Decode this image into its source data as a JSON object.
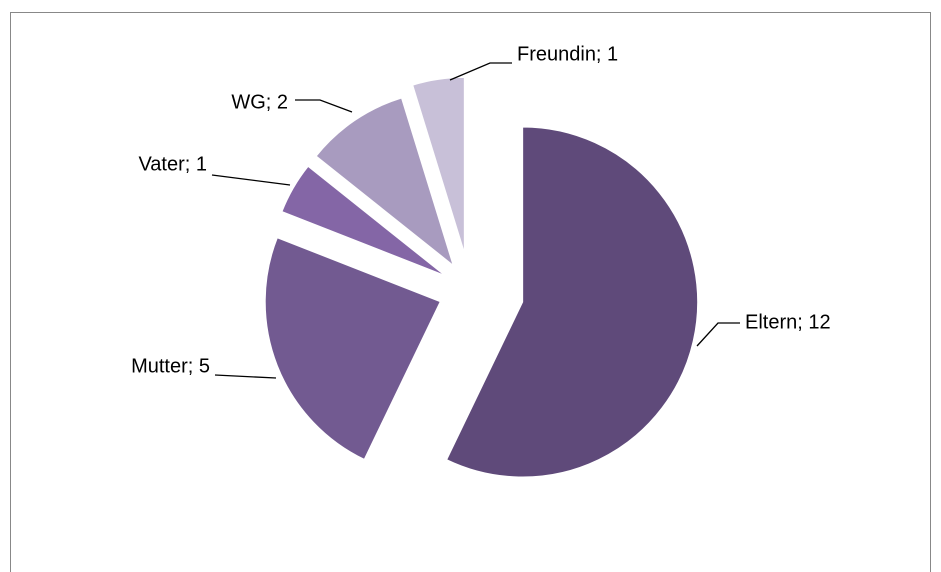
{
  "chart_data": {
    "type": "pie",
    "categories": [
      "Eltern",
      "Mutter",
      "Vater",
      "WG",
      "Freundin"
    ],
    "values": [
      12,
      5,
      1,
      2,
      1
    ],
    "value_labels": [
      "Eltern; 12",
      "Mutter; 5",
      "Vater; 1",
      "WG; 2",
      "Freundin; 1"
    ],
    "colors": [
      "#5f4a7a",
      "#725a91",
      "#8466a6",
      "#a89bbf",
      "#c8c0d8"
    ]
  }
}
